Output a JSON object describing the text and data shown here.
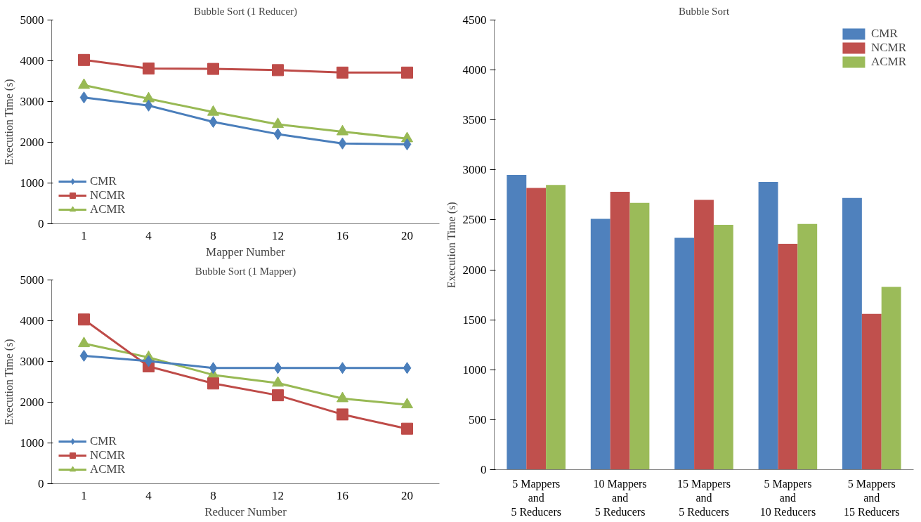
{
  "chart_data": [
    {
      "type": "line",
      "title": "Bubble Sort (1 Reducer)",
      "xlabel": "Mapper Number",
      "ylabel": "Execution Time (s)",
      "categories": [
        "1",
        "4",
        "8",
        "12",
        "16",
        "20"
      ],
      "ylim": [
        0,
        5000
      ],
      "yticks": [
        0,
        1000,
        2000,
        3000,
        4000,
        5000
      ],
      "grid": false,
      "legend": "bottom left",
      "series": [
        {
          "name": "CMR",
          "color": "#4a7ebb",
          "marker": "diamond",
          "values": [
            3100,
            2900,
            2500,
            2200,
            1970,
            1950
          ]
        },
        {
          "name": "NCMR",
          "color": "#be4b48",
          "marker": "square",
          "values": [
            4020,
            3810,
            3800,
            3770,
            3710,
            3710
          ]
        },
        {
          "name": "ACMR",
          "color": "#98b954",
          "marker": "triangle",
          "values": [
            3400,
            3070,
            2740,
            2440,
            2260,
            2090
          ]
        }
      ]
    },
    {
      "type": "line",
      "title": "Bubble Sort (1 Mapper)",
      "xlabel": "Reducer Number",
      "ylabel": "Execution Time (s)",
      "categories": [
        "1",
        "4",
        "8",
        "12",
        "16",
        "20"
      ],
      "ylim": [
        0,
        5000
      ],
      "yticks": [
        0,
        1000,
        2000,
        3000,
        4000,
        5000
      ],
      "grid": false,
      "legend": "bottom left",
      "series": [
        {
          "name": "CMR",
          "color": "#4a7ebb",
          "marker": "diamond",
          "values": [
            3140,
            3010,
            2840,
            2840,
            2840,
            2840
          ]
        },
        {
          "name": "NCMR",
          "color": "#be4b48",
          "marker": "square",
          "values": [
            4030,
            2880,
            2460,
            2170,
            1700,
            1350
          ]
        },
        {
          "name": "ACMR",
          "color": "#98b954",
          "marker": "triangle",
          "values": [
            3440,
            3100,
            2670,
            2470,
            2090,
            1940
          ]
        }
      ]
    },
    {
      "type": "bar",
      "title": "Bubble Sort",
      "ylabel": "Execution Time (s)",
      "categories": [
        "5 Mappers\nand\n5 Reducers",
        "10 Mappers\nand\n5 Reducers",
        "15 Mappers\nand\n5 Reducers",
        "5 Mappers\nand\n10 Reducers",
        "5 Mappers\nand\n15 Reducers"
      ],
      "ylim": [
        0,
        4500
      ],
      "yticks": [
        0,
        500,
        1000,
        1500,
        2000,
        2500,
        3000,
        3500,
        4000,
        4500
      ],
      "grid": false,
      "legend": "top right",
      "series": [
        {
          "name": "CMR",
          "color": "#4f81bd",
          "values": [
            2950,
            2510,
            2320,
            2880,
            2720
          ]
        },
        {
          "name": "NCMR",
          "color": "#c0504d",
          "values": [
            2820,
            2780,
            2700,
            2260,
            1560
          ]
        },
        {
          "name": "ACMR",
          "color": "#9bbb59",
          "values": [
            2850,
            2670,
            2450,
            2460,
            1830
          ]
        }
      ]
    }
  ]
}
